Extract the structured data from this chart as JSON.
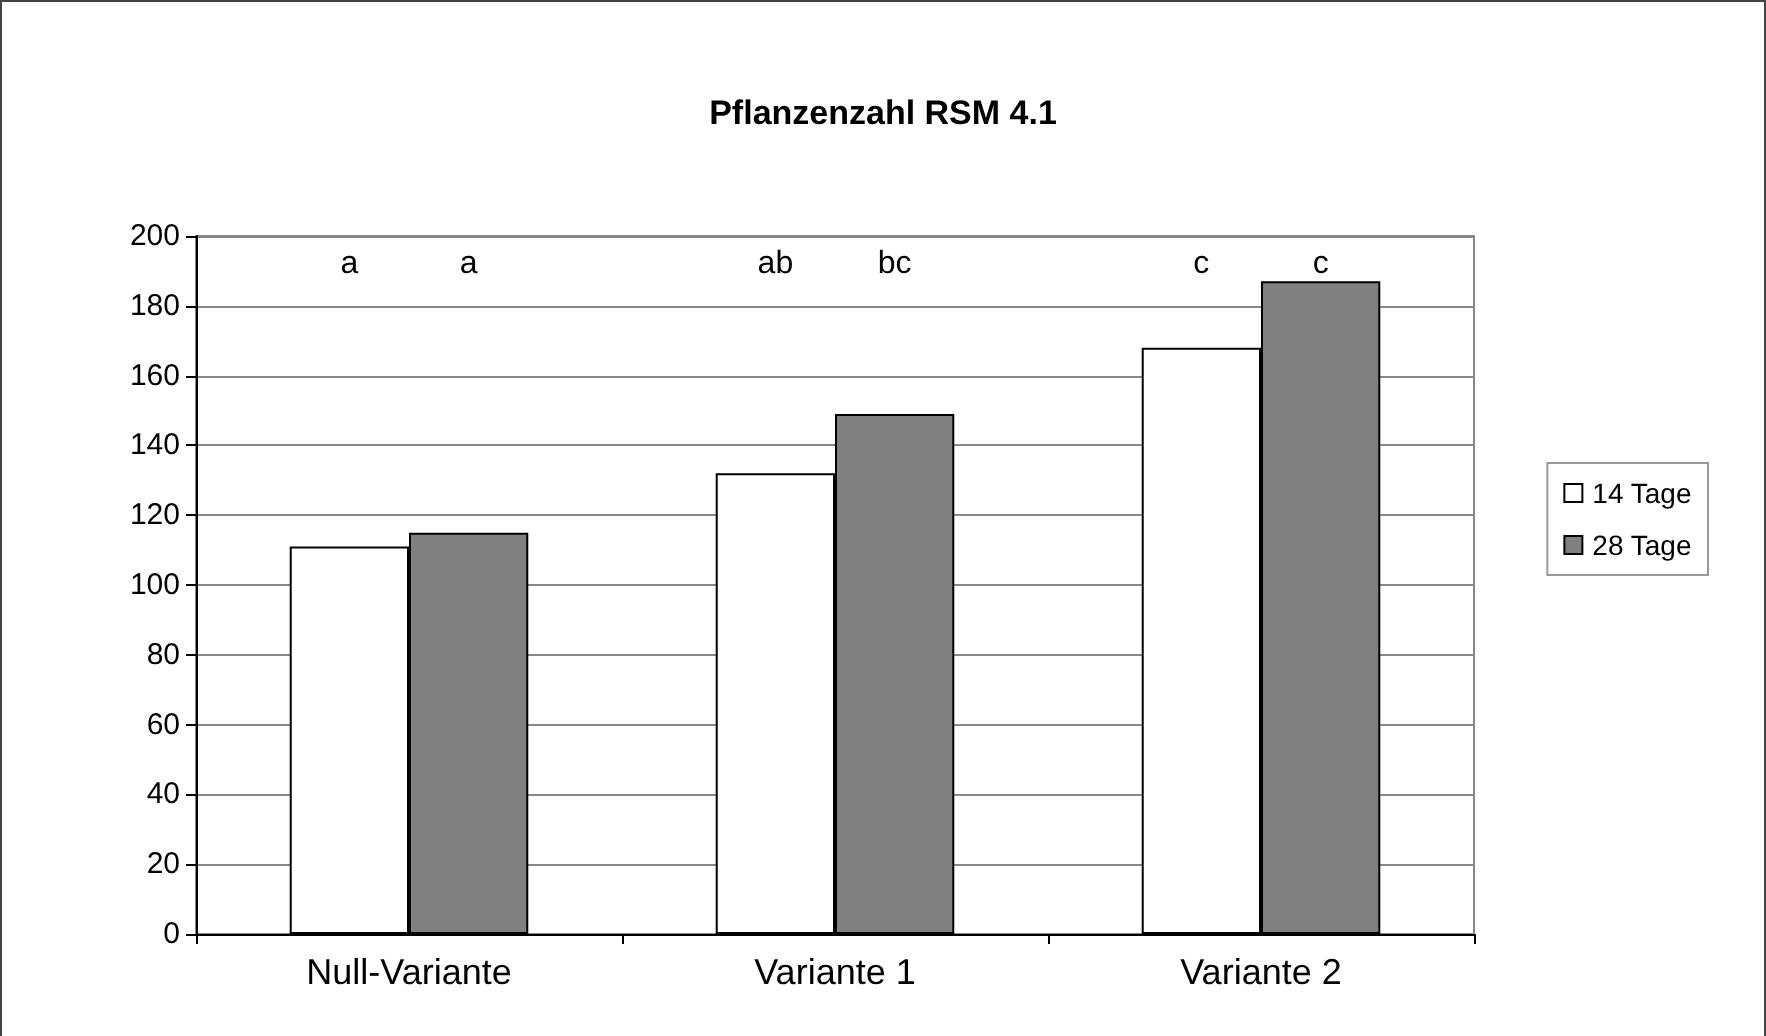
{
  "chart_data": {
    "type": "bar",
    "title": "Pflanzenzahl RSM 4.1",
    "categories": [
      "Null-Variante",
      "Variante 1",
      "Variante 2"
    ],
    "series": [
      {
        "name": "14 Tage",
        "color": "#ffffff",
        "values": [
          111,
          132,
          168
        ]
      },
      {
        "name": "28 Tage",
        "color": "#808080",
        "values": [
          115,
          149,
          187
        ]
      }
    ],
    "ylim": [
      0,
      200
    ],
    "yticks": [
      0,
      20,
      40,
      60,
      80,
      100,
      120,
      140,
      160,
      180,
      200
    ],
    "grid": "y",
    "legend": "right",
    "annotations": [
      "a",
      "a",
      "ab",
      "bc",
      "c",
      "c"
    ]
  }
}
